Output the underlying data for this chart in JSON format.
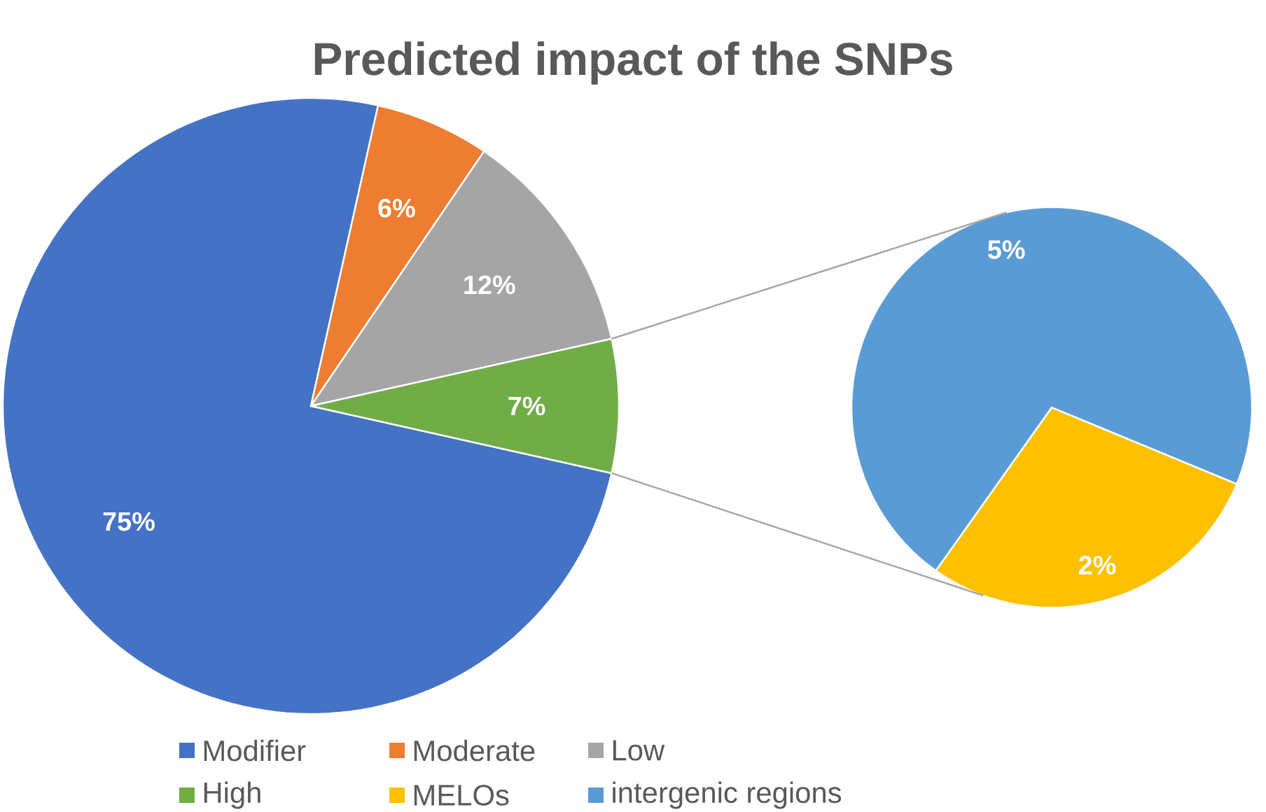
{
  "chart_data": [
    {
      "type": "pie",
      "title": "Predicted impact of the SNPs",
      "categories": [
        "Modifier",
        "Moderate",
        "Low",
        "High"
      ],
      "values": [
        75,
        6,
        12,
        7
      ],
      "colors": [
        "#4472c4",
        "#ed7d31",
        "#a5a5a5",
        "#70ad47"
      ],
      "value_labels": [
        "75%",
        "6%",
        "12%",
        "7%"
      ],
      "legend": "bottom"
    },
    {
      "type": "pie",
      "categories": [
        "MELOs",
        "intergenic regions"
      ],
      "values": [
        2,
        5
      ],
      "colors": [
        "#ffc000",
        "#5b9bd5"
      ],
      "value_labels": [
        "2%",
        "5%"
      ],
      "legend": "bottom"
    }
  ]
}
